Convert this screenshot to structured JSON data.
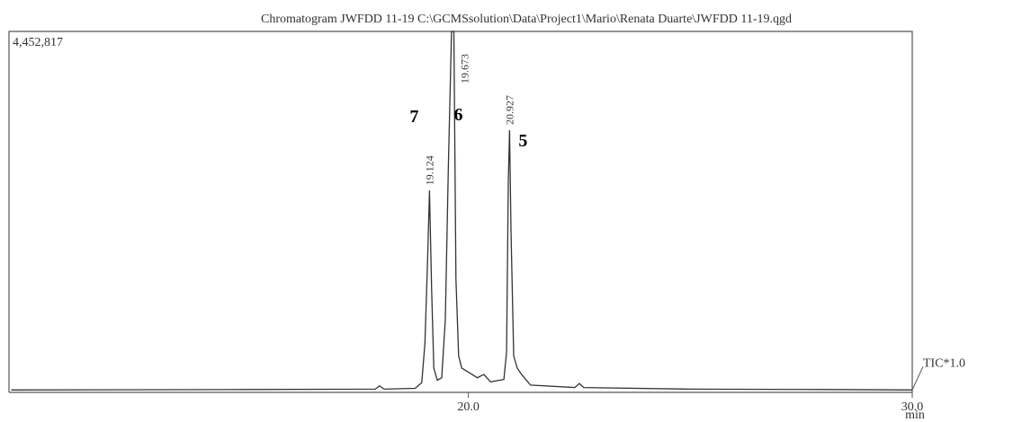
{
  "chart_data": {
    "type": "line",
    "title": "Chromatogram JWFDD 11-19 C:\\GCMSsolution\\Data\\Project1\\Mario\\Renata Duarte\\JWFDD 11-19.qgd",
    "x_label": "min",
    "xlim": [
      9.65,
      30
    ],
    "xticks": [
      {
        "value": 20,
        "label": "20.0"
      },
      {
        "value": 30,
        "label": "30.0"
      }
    ],
    "ylim": [
      0,
      4452817
    ],
    "yticks": [
      {
        "value": 4452817,
        "label": "4,452,817"
      }
    ],
    "series": [
      {
        "name": "TIC*1.0",
        "color": "#333333",
        "x": [
          9.7,
          12,
          15,
          17.9,
          18.0,
          18.1,
          18.8,
          18.95,
          19.02,
          19.08,
          19.124,
          19.17,
          19.22,
          19.3,
          19.4,
          19.48,
          19.55,
          19.62,
          19.673,
          19.72,
          19.78,
          19.85,
          20.0,
          20.2,
          20.35,
          20.5,
          20.8,
          20.86,
          20.9,
          20.927,
          20.96,
          21.02,
          21.1,
          21.2,
          21.4,
          22.4,
          22.5,
          22.6,
          25,
          28,
          30
        ],
        "values": [
          30000,
          32000,
          35000,
          40000,
          80000,
          40000,
          50000,
          120000,
          600000,
          1600000,
          2490000,
          1300000,
          300000,
          150000,
          180000,
          900000,
          2800000,
          4452817,
          4452817,
          1400000,
          450000,
          300000,
          250000,
          180000,
          220000,
          130000,
          160000,
          500000,
          2600000,
          3234000,
          2000000,
          450000,
          300000,
          220000,
          90000,
          60000,
          110000,
          60000,
          40000,
          35000,
          30000
        ]
      }
    ],
    "peaks": [
      {
        "x": 19.124,
        "number": "7"
      },
      {
        "x": 19.673,
        "number": "6"
      },
      {
        "x": 20.927,
        "number": "5"
      }
    ]
  }
}
